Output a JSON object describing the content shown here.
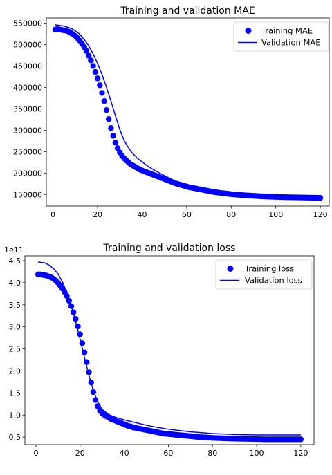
{
  "chart_data": [
    {
      "type": "scatter",
      "title": "Training and validation MAE",
      "xlabel": "",
      "ylabel": "",
      "xlim": [
        -3,
        124
      ],
      "ylim": [
        123000,
        562000
      ],
      "xticks": [
        0,
        20,
        40,
        60,
        80,
        100,
        120
      ],
      "yticks": [
        150000,
        200000,
        250000,
        300000,
        350000,
        400000,
        450000,
        500000,
        550000
      ],
      "legend_position": "top-right",
      "grid": false,
      "series": [
        {
          "name": "Training MAE",
          "kind": "points",
          "color": "#0000ff",
          "x": [
            1,
            2,
            3,
            4,
            5,
            6,
            7,
            8,
            9,
            10,
            11,
            12,
            13,
            14,
            15,
            16,
            17,
            18,
            19,
            20,
            21,
            22,
            23,
            24,
            25,
            26,
            27,
            28,
            29,
            30,
            31,
            32,
            33,
            34,
            35,
            36,
            37,
            38,
            39,
            40,
            41,
            42,
            43,
            44,
            45,
            46,
            47,
            48,
            49,
            50,
            51,
            52,
            53,
            54,
            55,
            56,
            57,
            58,
            59,
            60,
            61,
            62,
            63,
            64,
            65,
            66,
            67,
            68,
            69,
            70,
            71,
            72,
            73,
            74,
            75,
            76,
            77,
            78,
            79,
            80,
            81,
            82,
            83,
            84,
            85,
            86,
            87,
            88,
            89,
            90,
            91,
            92,
            93,
            94,
            95,
            96,
            97,
            98,
            99,
            100,
            101,
            102,
            103,
            104,
            105,
            106,
            107,
            108,
            109,
            110,
            111,
            112,
            113,
            114,
            115,
            116,
            117,
            118,
            119,
            120
          ],
          "y": [
            535000,
            536000,
            535000,
            534000,
            533000,
            532000,
            530000,
            527000,
            524000,
            520000,
            515000,
            509000,
            502000,
            494000,
            485000,
            474000,
            463000,
            450000,
            436000,
            421000,
            405000,
            387000,
            368000,
            347000,
            326000,
            305000,
            287000,
            271000,
            258000,
            248000,
            240000,
            234000,
            229000,
            224000,
            220000,
            217000,
            214000,
            211000,
            208000,
            206000,
            204000,
            202000,
            200000,
            198000,
            196000,
            194000,
            192000,
            190000,
            188000,
            186000,
            184000,
            182000,
            180000,
            178000,
            176000,
            174500,
            173000,
            171500,
            170000,
            168500,
            167000,
            166000,
            165000,
            164000,
            163000,
            162000,
            161000,
            160000,
            159000,
            158000,
            157000,
            156000,
            155200,
            154500,
            153800,
            153100,
            152500,
            151900,
            151300,
            150800,
            150300,
            149800,
            149300,
            148900,
            148500,
            148100,
            147700,
            147400,
            147100,
            146800,
            146500,
            146200,
            145900,
            145600,
            145400,
            145200,
            145000,
            144800,
            144600,
            144400,
            144200,
            144000,
            143800,
            143700,
            143600,
            143500,
            143400,
            143300,
            143200,
            143100,
            143000,
            142900,
            142800,
            142700,
            142600,
            142500,
            142400,
            142300,
            142200,
            142100
          ]
        },
        {
          "name": "Validation MAE",
          "kind": "line",
          "color": "#0000ff",
          "x": [
            1,
            5,
            8,
            10,
            12,
            14,
            16,
            18,
            20,
            22,
            24,
            26,
            28,
            30,
            32,
            35,
            38,
            42,
            46,
            50,
            55,
            60,
            65,
            70,
            75,
            80,
            85,
            90,
            95,
            100,
            105,
            110,
            115,
            120
          ],
          "y": [
            546000,
            543000,
            538000,
            532000,
            524000,
            512000,
            497000,
            478000,
            456000,
            430000,
            400000,
            368000,
            334000,
            301000,
            275000,
            250000,
            234000,
            218000,
            205000,
            194000,
            181000,
            171000,
            163000,
            157000,
            153000,
            150000,
            148500,
            147400,
            146600,
            146000,
            145500,
            145200,
            144900,
            144700
          ]
        }
      ]
    },
    {
      "type": "scatter",
      "title": "Training and validation loss",
      "xlabel": "",
      "ylabel": "",
      "y_offset_label": "1e11",
      "xlim": [
        -5,
        126
      ],
      "ylim": [
        0.33,
        4.61
      ],
      "xticks": [
        0,
        20,
        40,
        60,
        80,
        100,
        120
      ],
      "yticks": [
        0.5,
        1.0,
        1.5,
        2.0,
        2.5,
        3.0,
        3.5,
        4.0,
        4.5
      ],
      "yticklabels": [
        "0.5",
        "1.0",
        "1.5",
        "2.0",
        "2.5",
        "3.0",
        "3.5",
        "4.0",
        "4.5"
      ],
      "legend_position": "top-right",
      "grid": false,
      "series": [
        {
          "name": "Training loss",
          "kind": "points",
          "color": "#0000ff",
          "x": [
            1,
            2,
            3,
            4,
            5,
            6,
            7,
            8,
            9,
            10,
            11,
            12,
            13,
            14,
            15,
            16,
            17,
            18,
            19,
            20,
            21,
            22,
            23,
            24,
            25,
            26,
            27,
            28,
            29,
            30,
            31,
            32,
            33,
            34,
            35,
            36,
            37,
            38,
            39,
            40,
            41,
            42,
            43,
            44,
            45,
            46,
            47,
            48,
            49,
            50,
            51,
            52,
            53,
            54,
            55,
            56,
            57,
            58,
            59,
            60,
            61,
            62,
            63,
            64,
            65,
            66,
            67,
            68,
            69,
            70,
            71,
            72,
            73,
            74,
            75,
            76,
            77,
            78,
            79,
            80,
            81,
            82,
            83,
            84,
            85,
            86,
            87,
            88,
            89,
            90,
            91,
            92,
            93,
            94,
            95,
            96,
            97,
            98,
            99,
            100,
            101,
            102,
            103,
            104,
            105,
            106,
            107,
            108,
            109,
            110,
            111,
            112,
            113,
            114,
            115,
            116,
            117,
            118,
            119,
            120
          ],
          "y": [
            4.19,
            4.19,
            4.18,
            4.17,
            4.16,
            4.14,
            4.12,
            4.09,
            4.05,
            4.0,
            3.94,
            3.87,
            3.79,
            3.7,
            3.59,
            3.47,
            3.33,
            3.18,
            3.01,
            2.83,
            2.63,
            2.42,
            2.2,
            1.97,
            1.74,
            1.52,
            1.34,
            1.2,
            1.1,
            1.04,
            1.0,
            0.97,
            0.94,
            0.91,
            0.89,
            0.87,
            0.85,
            0.83,
            0.81,
            0.79,
            0.77,
            0.75,
            0.74,
            0.72,
            0.71,
            0.7,
            0.69,
            0.68,
            0.67,
            0.66,
            0.65,
            0.64,
            0.63,
            0.62,
            0.61,
            0.6,
            0.59,
            0.58,
            0.575,
            0.57,
            0.565,
            0.56,
            0.555,
            0.55,
            0.545,
            0.54,
            0.535,
            0.53,
            0.525,
            0.52,
            0.515,
            0.51,
            0.505,
            0.5,
            0.497,
            0.494,
            0.491,
            0.488,
            0.485,
            0.482,
            0.48,
            0.478,
            0.476,
            0.474,
            0.472,
            0.47,
            0.468,
            0.466,
            0.465,
            0.464,
            0.463,
            0.462,
            0.461,
            0.46,
            0.459,
            0.458,
            0.457,
            0.456,
            0.455,
            0.454,
            0.453,
            0.452,
            0.451,
            0.45,
            0.45,
            0.45,
            0.45,
            0.45,
            0.45,
            0.45,
            0.45,
            0.45,
            0.45,
            0.45,
            0.45,
            0.45,
            0.45,
            0.45,
            0.45,
            0.45
          ]
        },
        {
          "name": "Validation loss",
          "kind": "line",
          "color": "#0000ff",
          "x": [
            1,
            4,
            6,
            8,
            10,
            12,
            14,
            16,
            18,
            20,
            22,
            24,
            26,
            28,
            30,
            33,
            36,
            40,
            45,
            50,
            55,
            60,
            65,
            70,
            75,
            80,
            90,
            100,
            110,
            120
          ],
          "y": [
            4.47,
            4.45,
            4.4,
            4.32,
            4.2,
            4.02,
            3.78,
            3.48,
            3.12,
            2.72,
            2.3,
            1.9,
            1.56,
            1.3,
            1.13,
            1.01,
            0.95,
            0.89,
            0.83,
            0.77,
            0.72,
            0.68,
            0.65,
            0.62,
            0.6,
            0.58,
            0.56,
            0.55,
            0.55,
            0.55
          ]
        }
      ]
    }
  ]
}
